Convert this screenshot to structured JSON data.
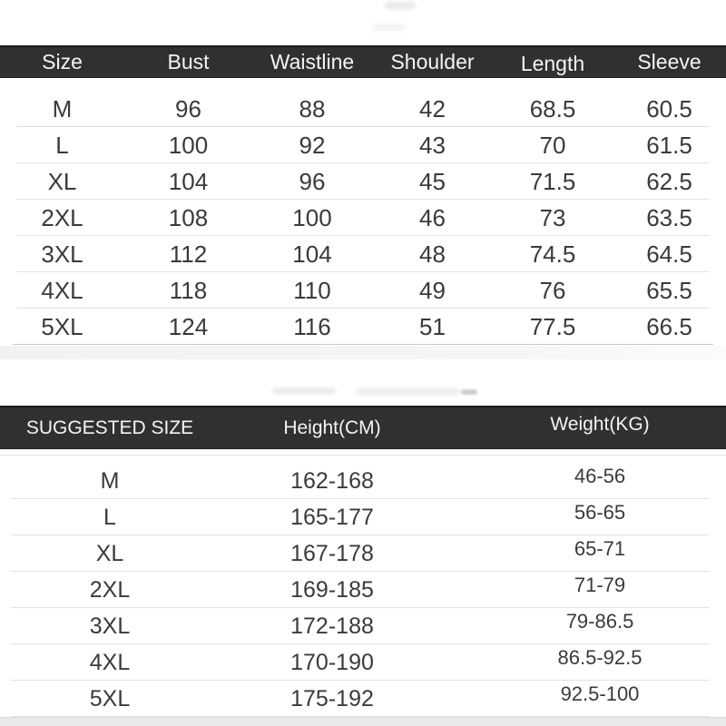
{
  "size_table": {
    "headers": [
      "Size",
      "Bust",
      "Waistline",
      "Shoulder",
      "Length",
      "Sleeve"
    ],
    "rows": [
      [
        "M",
        "96",
        "88",
        "42",
        "68.5",
        "60.5"
      ],
      [
        "L",
        "100",
        "92",
        "43",
        "70",
        "61.5"
      ],
      [
        "XL",
        "104",
        "96",
        "45",
        "71.5",
        "62.5"
      ],
      [
        "2XL",
        "108",
        "100",
        "46",
        "73",
        "63.5"
      ],
      [
        "3XL",
        "112",
        "104",
        "48",
        "74.5",
        "64.5"
      ],
      [
        "4XL",
        "118",
        "110",
        "49",
        "76",
        "65.5"
      ],
      [
        "5XL",
        "124",
        "116",
        "51",
        "77.5",
        "66.5"
      ]
    ]
  },
  "suggested_table": {
    "headers": [
      "SUGGESTED SIZE",
      "Height(CM)",
      "Weight(KG)"
    ],
    "rows": [
      [
        "M",
        "162-168",
        "46-56"
      ],
      [
        "L",
        "165-177",
        "56-65"
      ],
      [
        "XL",
        "167-178",
        "65-71"
      ],
      [
        "2XL",
        "169-185",
        "71-79"
      ],
      [
        "3XL",
        "172-188",
        "79-86.5"
      ],
      [
        "4XL",
        "170-190",
        "86.5-92.5"
      ],
      [
        "5XL",
        "175-192",
        "92.5-100"
      ]
    ]
  },
  "colors": {
    "header_bar": "#2f3032",
    "header_text": "#f4f4f4",
    "body_text": "#3a3a3a",
    "separator": "#e2e2e2",
    "band": "#f2f2f2"
  },
  "chart_data": [
    {
      "type": "table",
      "title": "Garment measurements (CM)",
      "columns": [
        "Size",
        "Bust",
        "Waistline",
        "Shoulder",
        "Length",
        "Sleeve"
      ],
      "rows": [
        [
          "M",
          96,
          88,
          42,
          68.5,
          60.5
        ],
        [
          "L",
          100,
          92,
          43,
          70,
          61.5
        ],
        [
          "XL",
          104,
          96,
          45,
          71.5,
          62.5
        ],
        [
          "2XL",
          108,
          100,
          46,
          73,
          63.5
        ],
        [
          "3XL",
          112,
          104,
          48,
          74.5,
          64.5
        ],
        [
          "4XL",
          118,
          110,
          49,
          76,
          65.5
        ],
        [
          "5XL",
          124,
          116,
          51,
          77.5,
          66.5
        ]
      ]
    },
    {
      "type": "table",
      "title": "Suggested size",
      "columns": [
        "SUGGESTED SIZE",
        "Height(CM)",
        "Weight(KG)"
      ],
      "rows": [
        [
          "M",
          "162-168",
          "46-56"
        ],
        [
          "L",
          "165-177",
          "56-65"
        ],
        [
          "XL",
          "167-178",
          "65-71"
        ],
        [
          "2XL",
          "169-185",
          "71-79"
        ],
        [
          "3XL",
          "172-188",
          "79-86.5"
        ],
        [
          "4XL",
          "170-190",
          "86.5-92.5"
        ],
        [
          "5XL",
          "175-192",
          "92.5-100"
        ]
      ]
    }
  ]
}
